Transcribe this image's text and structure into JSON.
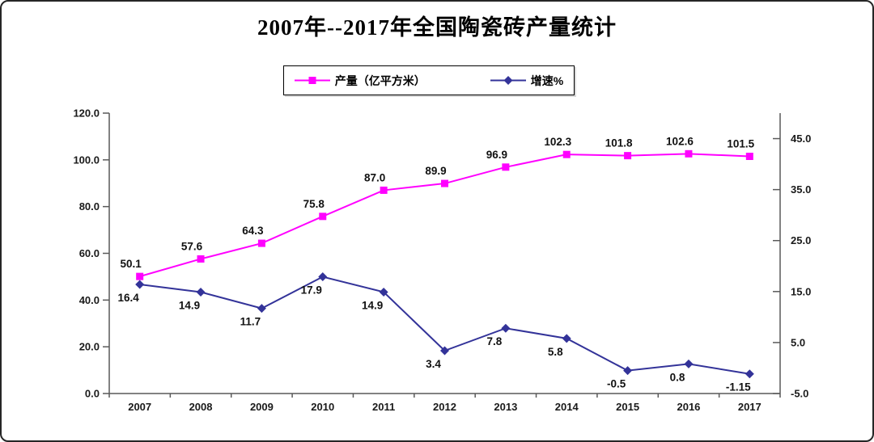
{
  "chart_data": {
    "type": "line",
    "title": "2007年--2017年全国陶瓷砖产量统计",
    "categories": [
      "2007",
      "2008",
      "2009",
      "2010",
      "2011",
      "2012",
      "2013",
      "2014",
      "2015",
      "2016",
      "2017"
    ],
    "series": [
      {
        "name": "产量（亿平方米）",
        "axis": "left",
        "color": "#FF00FF",
        "marker": "square",
        "label_position": "above",
        "values": [
          50.1,
          57.6,
          64.3,
          75.8,
          87.0,
          89.9,
          96.9,
          102.3,
          101.8,
          102.6,
          101.5
        ],
        "labels": [
          "50.1",
          "57.6",
          "64.3",
          "75.8",
          "87.0",
          "89.9",
          "96.9",
          "102.3",
          "101.8",
          "102.6",
          "101.5"
        ]
      },
      {
        "name": "增速%",
        "axis": "right",
        "color": "#333399",
        "marker": "diamond",
        "label_position": "below",
        "values": [
          16.4,
          14.9,
          11.7,
          17.9,
          14.9,
          3.4,
          7.8,
          5.8,
          -0.5,
          0.8,
          -1.15
        ],
        "labels": [
          "16.4",
          "14.9",
          "11.7",
          "17.9",
          "14.9",
          "3.4",
          "7.8",
          "5.8",
          "-0.5",
          "0.8",
          "-1.15"
        ]
      }
    ],
    "left_axis": {
      "min": 0,
      "max": 120,
      "tick_labels": [
        "0.0",
        "20.0",
        "40.0",
        "60.0",
        "80.0",
        "100.0",
        "120.0"
      ]
    },
    "right_axis": {
      "min": -5,
      "max": 50,
      "tick_labels": [
        "-5.0",
        "5.0",
        "15.0",
        "25.0",
        "35.0",
        "45.0"
      ]
    },
    "legend_position": "top",
    "grid": false,
    "axis_line_color": "#595959"
  }
}
